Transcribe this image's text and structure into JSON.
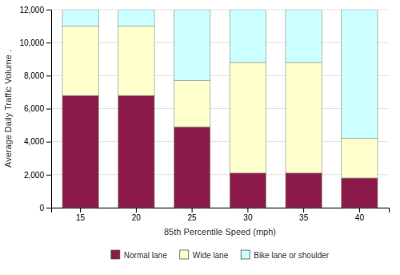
{
  "chart_data": {
    "type": "bar",
    "stacked": true,
    "categories": [
      "15",
      "20",
      "25",
      "30",
      "35",
      "40"
    ],
    "series": [
      {
        "name": "Normal lane",
        "color": "#8B1A4A",
        "values": [
          6800,
          6800,
          4900,
          2100,
          2100,
          1800
        ]
      },
      {
        "name": "Wide lane",
        "color": "#FFFFCC",
        "values": [
          4200,
          4200,
          2800,
          6700,
          6700,
          2400
        ]
      },
      {
        "name": "Bike lane or shoulder",
        "color": "#CCFFFF",
        "values": [
          1000,
          1000,
          4300,
          3200,
          3200,
          7800
        ]
      }
    ],
    "xlabel": "85th Percentile Speed (mph)",
    "ylabel": "Average Daily Traffic Volume .",
    "ylim": [
      0,
      12000
    ],
    "yticks": [
      0,
      {
        "value": 2000,
        "label": "2,000"
      },
      {
        "value": 4000,
        "label": "4,000"
      },
      {
        "value": 6000,
        "label": "6,000"
      },
      {
        "value": 8000,
        "label": "8,000"
      },
      {
        "value": 10000,
        "label": "10,000"
      },
      {
        "value": 12000,
        "label": "12,000"
      }
    ],
    "grid": true,
    "legend": "bottom"
  }
}
